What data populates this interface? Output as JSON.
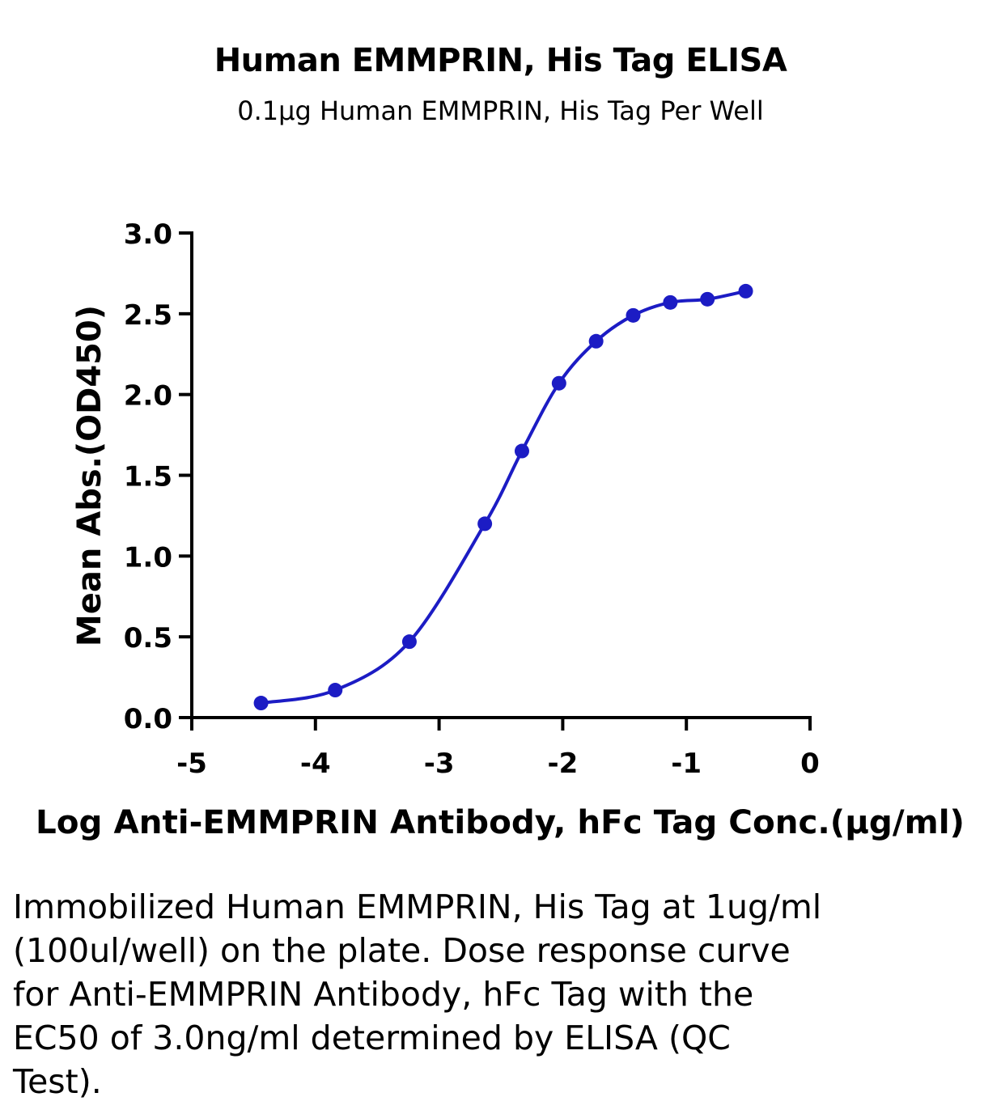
{
  "chart_data": {
    "type": "line",
    "title": "Human EMMPRIN, His Tag ELISA",
    "subtitle": "0.1μg Human EMMPRIN, His Tag Per Well",
    "xlabel": "Log Anti-EMMPRIN Antibody, hFc Tag Conc.(μg/ml)",
    "ylabel": "Mean Abs.(OD450)",
    "xlim": [
      -5,
      0
    ],
    "ylim": [
      0,
      3.0
    ],
    "x_ticks": [
      "-5",
      "-4",
      "-3",
      "-2",
      "-1",
      "0"
    ],
    "y_ticks": [
      "0.0",
      "0.5",
      "1.0",
      "1.5",
      "2.0",
      "2.5",
      "3.0"
    ],
    "grid": false,
    "series": [
      {
        "color": "#1c1cc4",
        "marker": "circle",
        "x": [
          -4.44,
          -3.84,
          -3.24,
          -2.63,
          -2.33,
          -2.03,
          -1.73,
          -1.43,
          -1.13,
          -0.83,
          -0.52
        ],
        "y": [
          0.09,
          0.17,
          0.47,
          1.2,
          1.65,
          2.07,
          2.33,
          2.49,
          2.57,
          2.59,
          2.64
        ]
      }
    ]
  },
  "caption": "Immobilized Human EMMPRIN, His Tag at 1ug/ml (100ul/well) on the plate. Dose response curve for Anti-EMMPRIN Antibody, hFc Tag with the EC50 of 3.0ng/ml determined by ELISA (QC Test)."
}
